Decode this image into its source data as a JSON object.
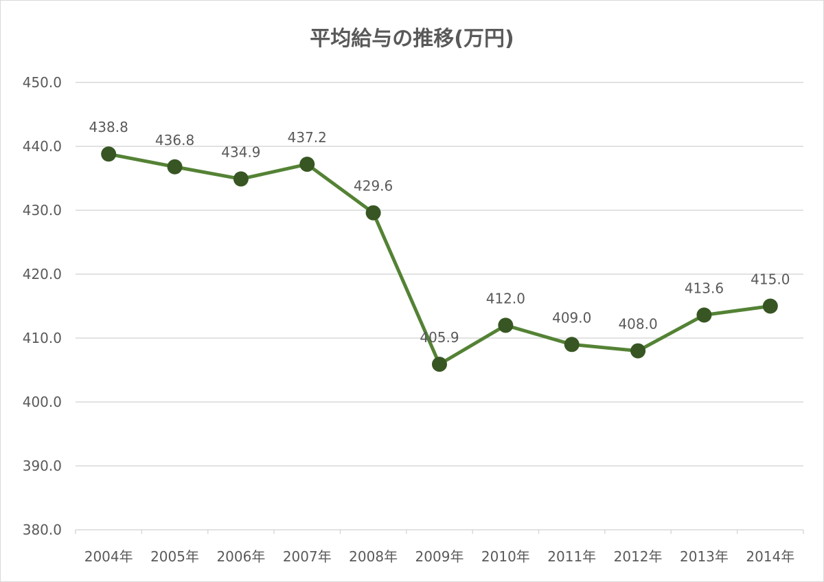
{
  "chart_data": {
    "type": "line",
    "title": "平均給与の推移(万円)",
    "categories": [
      "2004年",
      "2005年",
      "2006年",
      "2007年",
      "2008年",
      "2009年",
      "2010年",
      "2011年",
      "2012年",
      "2013年",
      "2014年"
    ],
    "series": [
      {
        "values": [
          438.8,
          436.8,
          434.9,
          437.2,
          429.6,
          405.9,
          412.0,
          409.0,
          408.0,
          413.6,
          415.0
        ]
      }
    ],
    "data_labels": [
      "438.8",
      "436.8",
      "434.9",
      "437.2",
      "429.6",
      "405.9",
      "412.0",
      "409.0",
      "408.0",
      "413.6",
      "415.0"
    ],
    "ylim": [
      380,
      450
    ],
    "yticks": [
      380,
      390,
      400,
      410,
      420,
      430,
      440,
      450
    ],
    "ytick_labels": [
      "380.0",
      "390.0",
      "400.0",
      "410.0",
      "420.0",
      "430.0",
      "440.0",
      "450.0"
    ],
    "grid": true,
    "legend": false,
    "colors": {
      "series": "#548235",
      "marker": "#375623"
    }
  }
}
